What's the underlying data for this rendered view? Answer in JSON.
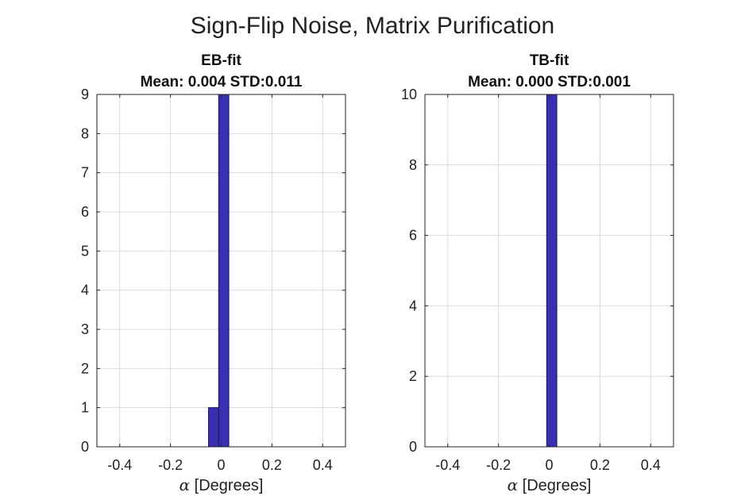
{
  "figure_title": "Sign-Flip Noise, Matrix Purification",
  "colors": {
    "bar_fill": "#3a2fb0",
    "bar_edge": "#1a1560",
    "grid": "#dcdcdc",
    "axis": "#222222"
  },
  "chart_data": [
    {
      "type": "bar",
      "title_line1": "EB-fit",
      "title_line2": "Mean: 0.004 STD:0.011",
      "xlabel_symbol": "α",
      "xlabel_text": " [Degrees]",
      "ylabel": "",
      "xlim": [
        -0.49,
        0.49
      ],
      "ylim": [
        0,
        9
      ],
      "xticks": [
        -0.4,
        -0.2,
        0,
        0.2,
        0.4
      ],
      "xtick_labels": [
        "-0.4",
        "-0.2",
        "0",
        "0.2",
        "0.4"
      ],
      "yticks": [
        0,
        1,
        2,
        3,
        4,
        5,
        6,
        7,
        8,
        9
      ],
      "ytick_labels": [
        "0",
        "1",
        "2",
        "3",
        "4",
        "5",
        "6",
        "7",
        "8",
        "9"
      ],
      "grid": true,
      "bins": [
        {
          "x0": -0.05,
          "x1": -0.01,
          "count": 1
        },
        {
          "x0": -0.01,
          "x1": 0.03,
          "count": 9
        }
      ]
    },
    {
      "type": "bar",
      "title_line1": "TB-fit",
      "title_line2": "Mean: 0.000 STD:0.001",
      "xlabel_symbol": "α",
      "xlabel_text": " [Degrees]",
      "ylabel": "",
      "xlim": [
        -0.49,
        0.49
      ],
      "ylim": [
        0,
        10
      ],
      "xticks": [
        -0.4,
        -0.2,
        0,
        0.2,
        0.4
      ],
      "xtick_labels": [
        "-0.4",
        "-0.2",
        "0",
        "0.2",
        "0.4"
      ],
      "yticks": [
        0,
        2,
        4,
        6,
        8,
        10
      ],
      "ytick_labels": [
        "0",
        "2",
        "4",
        "6",
        "8",
        "10"
      ],
      "grid": true,
      "bins": [
        {
          "x0": -0.01,
          "x1": 0.03,
          "count": 10
        }
      ]
    }
  ]
}
